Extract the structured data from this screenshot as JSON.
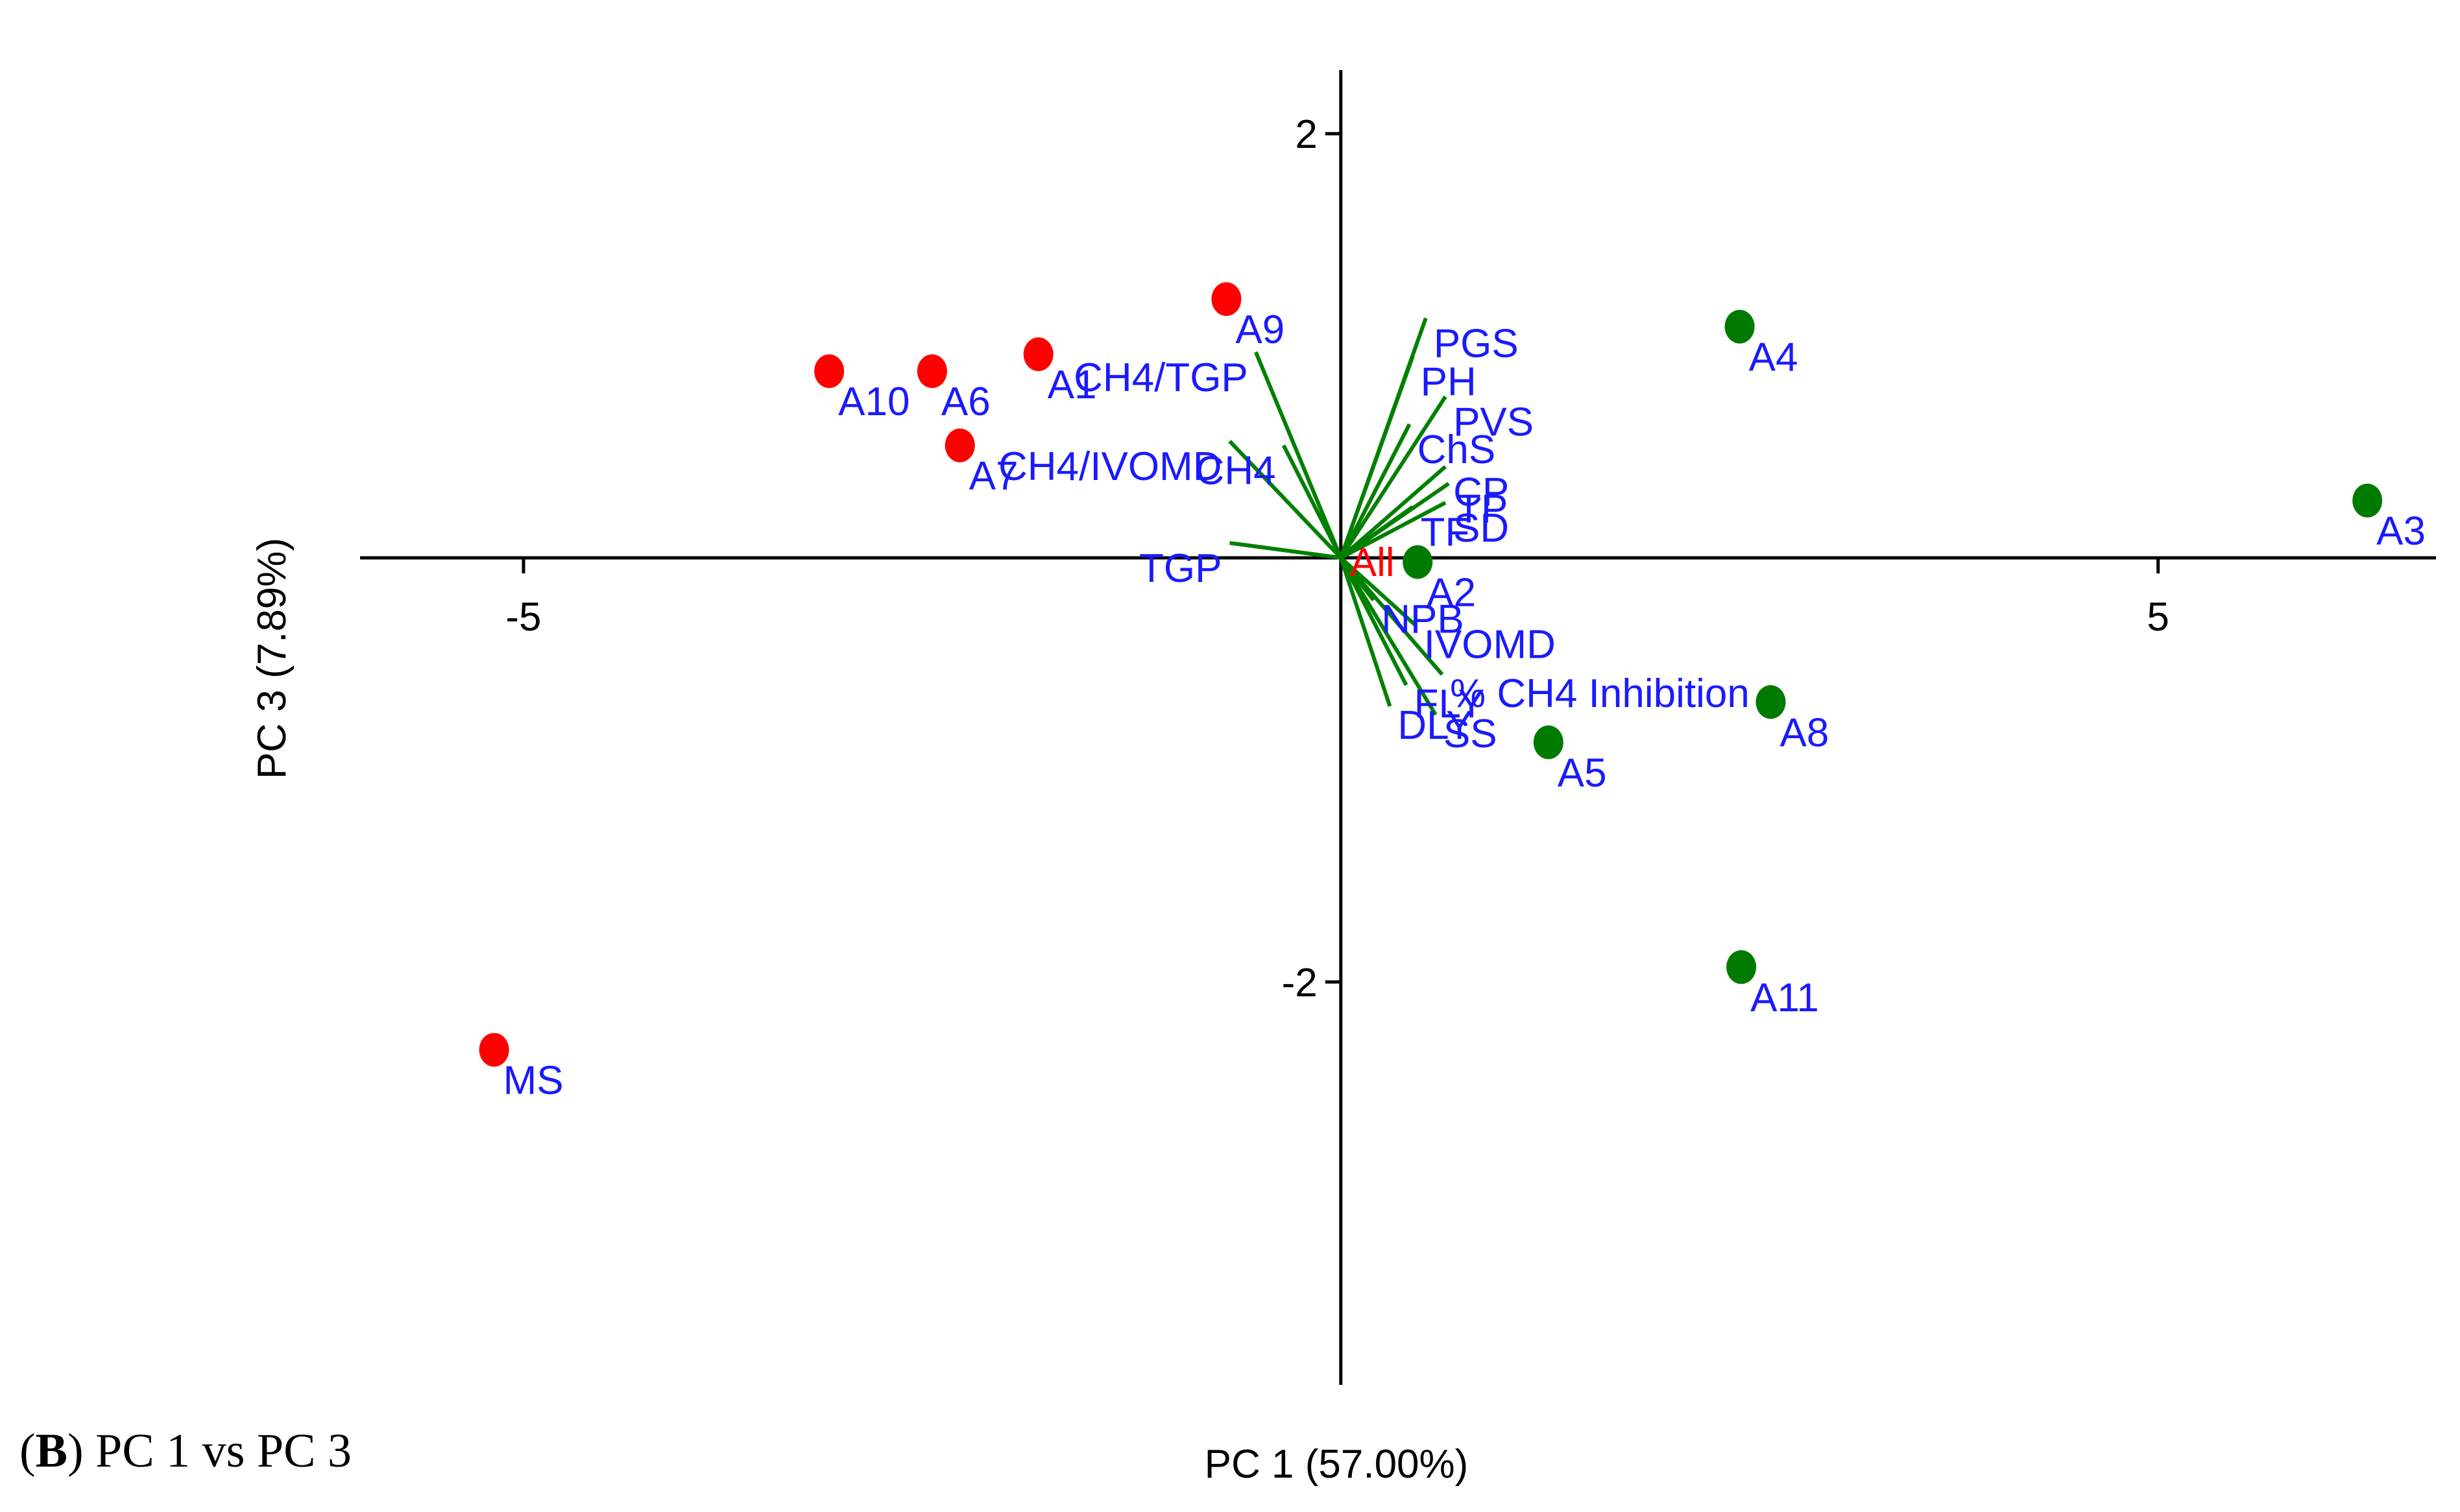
{
  "caption": {
    "letter": "B",
    "text": "PC 1 vs PC 3"
  },
  "chart_data": {
    "type": "scatter",
    "subtype": "pca-biplot",
    "xlabel": "PC 1 (57.00%)",
    "ylabel": "PC 3 (7.89%)",
    "xlim": [
      -6,
      6.7
    ],
    "ylim": [
      -3.9,
      2.3
    ],
    "xticks": [
      {
        "value": -5,
        "label": "-5"
      },
      {
        "value": 5,
        "label": "5"
      }
    ],
    "yticks": [
      {
        "value": 2,
        "label": "2"
      },
      {
        "value": -2,
        "label": "-2"
      }
    ],
    "grid": false,
    "origin_label": "All",
    "colors": {
      "group_red": "#ff0000",
      "group_green": "#007a00",
      "vector": "#008000",
      "label": "#1a1aff",
      "axis": "#000000"
    },
    "series": [
      {
        "color": "#ff0000",
        "points": [
          {
            "label": "A10",
            "x": -3.13,
            "y": 0.88
          },
          {
            "label": "A6",
            "x": -2.5,
            "y": 0.88
          },
          {
            "label": "A1",
            "x": -1.85,
            "y": 0.96
          },
          {
            "label": "A7",
            "x": -2.33,
            "y": 0.53
          },
          {
            "label": "A9",
            "x": -0.7,
            "y": 1.22
          },
          {
            "label": "MS",
            "x": -5.18,
            "y": -2.32
          }
        ]
      },
      {
        "color": "#007a00",
        "points": [
          {
            "label": "A4",
            "x": 2.44,
            "y": 1.09
          },
          {
            "label": "A3",
            "x": 6.28,
            "y": 0.27
          },
          {
            "label": "A2",
            "x": 0.47,
            "y": -0.02
          },
          {
            "label": "A8",
            "x": 2.63,
            "y": -0.68
          },
          {
            "label": "A5",
            "x": 1.27,
            "y": -0.87
          },
          {
            "label": "A11",
            "x": 2.45,
            "y": -1.93
          }
        ]
      }
    ],
    "vectors": [
      {
        "label": "PGS",
        "x": 0.52,
        "y": 1.13
      },
      {
        "label": "PH",
        "x": 0.44,
        "y": 0.95
      },
      {
        "label": "CH4/TGP",
        "x": -0.52,
        "y": 0.97
      },
      {
        "label": "PVS",
        "x": 0.64,
        "y": 0.76
      },
      {
        "label": "ChS",
        "x": 0.42,
        "y": 0.63
      },
      {
        "label": "CH4/IVOMD",
        "x": -0.68,
        "y": 0.55
      },
      {
        "label": "CH4",
        "x": -0.35,
        "y": 0.53
      },
      {
        "label": "CP",
        "x": 0.64,
        "y": 0.43
      },
      {
        "label": "TP",
        "x": 0.66,
        "y": 0.35
      },
      {
        "label": "TF",
        "x": 0.44,
        "y": 0.24
      },
      {
        "label": "SD",
        "x": 0.64,
        "y": 0.26
      },
      {
        "label": "TGP",
        "x": -0.68,
        "y": 0.07
      },
      {
        "label": "NPB",
        "x": 0.2,
        "y": -0.2
      },
      {
        "label": "IVOMD",
        "x": 0.46,
        "y": -0.32
      },
      {
        "label": "% CH4 Inhibition",
        "x": 0.62,
        "y": -0.55
      },
      {
        "label": "FLY",
        "x": 0.4,
        "y": -0.6
      },
      {
        "label": "DLY",
        "x": 0.3,
        "y": -0.7
      },
      {
        "label": "SS",
        "x": 0.58,
        "y": -0.74
      }
    ]
  }
}
